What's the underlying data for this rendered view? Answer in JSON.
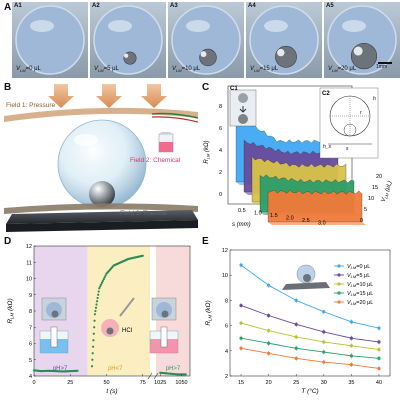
{
  "panelA": {
    "label": "A",
    "images": [
      {
        "sub": "A1",
        "text": "V",
        "subscript": "LM",
        "value": "=0 μL"
      },
      {
        "sub": "A2",
        "text": "V",
        "subscript": "LM",
        "value": "=5 μL"
      },
      {
        "sub": "A3",
        "text": "V",
        "subscript": "LM",
        "value": "=10 μL"
      },
      {
        "sub": "A4",
        "text": "V",
        "subscript": "LM",
        "value": "=15 μL"
      },
      {
        "sub": "A5",
        "text": "V",
        "subscript": "LM",
        "value": "=20 μL"
      }
    ],
    "scale_bar": "1mm"
  },
  "panelB": {
    "label": "B",
    "field1": "Field 1: Pressure",
    "field2": "Field 2: Chemical",
    "field3": "Field 3: Thermal"
  },
  "panelC": {
    "label": "C",
    "sub1": "C1",
    "sub2": "C2",
    "ylabel": "R",
    "ylabel_sub": "LM",
    "ylabel_unit": "(kΩ)",
    "xlabel": "s (mm)",
    "zlabel": "V",
    "zlabel_sub": "LM",
    "zlabel_unit": "(μL)",
    "yticks": [
      "0",
      "2",
      "4",
      "6",
      "8"
    ],
    "xticks": [
      "0.5",
      "1.0",
      "1.5",
      "2.0",
      "2.5",
      "3.0"
    ],
    "zticks": [
      "0",
      "5",
      "10",
      "15",
      "20"
    ],
    "inset_labels": [
      "h",
      "r",
      "s",
      "h_s"
    ]
  },
  "panelD": {
    "label": "D",
    "ylabel": "R",
    "ylabel_sub": "LM",
    "ylabel_unit": "(kΩ)",
    "xlabel": "t (s)",
    "yticks": [
      "4",
      "5",
      "6",
      "7",
      "8",
      "9",
      "10",
      "11",
      "12"
    ],
    "xticks": [
      "0",
      "25",
      "50",
      "75",
      "1025",
      "1050"
    ],
    "region_labels": [
      "pH>7",
      "pH<7",
      "pH>7"
    ],
    "hcl_label": "HCl",
    "colors": {
      "left_bg": "#e8d6ee",
      "mid_bg": "#fbeec0",
      "right_bg": "#f7dada",
      "data": "#2e8b57"
    }
  },
  "panelE": {
    "label": "E",
    "ylabel": "R",
    "ylabel_sub": "LM",
    "ylabel_unit": "(kΩ)",
    "xlabel": "T (°C)",
    "yticks": [
      "2",
      "4",
      "6",
      "8",
      "10",
      "12"
    ],
    "xticks": [
      "15",
      "20",
      "25",
      "30",
      "35",
      "40"
    ],
    "legend": [
      {
        "label": "V",
        "sub": "LM",
        "value": "=0 μL",
        "color": "#3fa9f5"
      },
      {
        "label": "V",
        "sub": "LM",
        "value": "=5 μL",
        "color": "#6a4c9c"
      },
      {
        "label": "V",
        "sub": "LM",
        "value": "=10 μL",
        "color": "#b8c23a"
      },
      {
        "label": "V",
        "sub": "LM",
        "value": "=15 μL",
        "color": "#2e9e6a"
      },
      {
        "label": "V",
        "sub": "LM",
        "value": "=20 μL",
        "color": "#f07a3a"
      }
    ]
  },
  "chart_data": [
    {
      "type": "line",
      "panel": "D",
      "xlabel": "t (s)",
      "ylabel": "R_LM (kΩ)",
      "ylim": [
        4,
        12
      ],
      "segments": [
        {
          "x": [
            0,
            5,
            10,
            15,
            20,
            25,
            30
          ],
          "y": [
            4.35,
            4.3,
            4.32,
            4.3,
            4.28,
            4.3,
            4.32
          ]
        },
        {
          "x": [
            40,
            42,
            45,
            50,
            55,
            60,
            65,
            70,
            75
          ],
          "y": [
            4.6,
            7.8,
            9.4,
            10.3,
            10.8,
            11.0,
            11.2,
            11.3,
            11.4
          ]
        },
        {
          "x": [
            1025,
            1035,
            1045,
            1055
          ],
          "y": [
            4.2,
            4.15,
            4.1,
            4.1
          ]
        }
      ]
    },
    {
      "type": "line",
      "panel": "E",
      "xlabel": "T (°C)",
      "ylabel": "R_LM (kΩ)",
      "x": [
        15,
        20,
        25,
        30,
        35,
        40
      ],
      "ylim": [
        2,
        12
      ],
      "series": [
        {
          "name": "V_LM=0 μL",
          "values": [
            10.8,
            9.2,
            8.0,
            7.1,
            6.3,
            5.8
          ]
        },
        {
          "name": "V_LM=5 μL",
          "values": [
            7.6,
            6.8,
            6.1,
            5.5,
            5.0,
            4.7
          ]
        },
        {
          "name": "V_LM=10 μL",
          "values": [
            6.2,
            5.6,
            5.1,
            4.7,
            4.4,
            4.1
          ]
        },
        {
          "name": "V_LM=15 μL",
          "values": [
            5.0,
            4.6,
            4.2,
            3.9,
            3.6,
            3.4
          ]
        },
        {
          "name": "V_LM=20 μL",
          "values": [
            4.2,
            3.8,
            3.4,
            3.1,
            2.9,
            2.6
          ]
        }
      ]
    }
  ]
}
